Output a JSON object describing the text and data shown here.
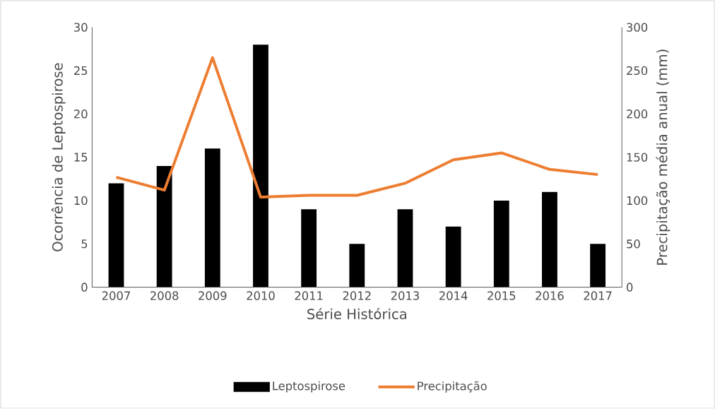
{
  "chart_data": {
    "type": "bar",
    "xlabel": "Série Histórica",
    "ylabel": "Ocorrência de Leptospirose",
    "y2label": "Precipitação média anual (mm)",
    "categories": [
      "2007",
      "2008",
      "2009",
      "2010",
      "2011",
      "2012",
      "2013",
      "2014",
      "2015",
      "2016",
      "2017"
    ],
    "series": [
      {
        "name": "Leptospirose",
        "color": "#000000",
        "values": [
          12,
          14,
          16,
          28,
          9,
          5,
          9,
          7,
          10,
          11,
          5
        ]
      },
      {
        "name": "Precipitação",
        "type": "line",
        "axis": "y2",
        "color": "#ed7d31",
        "values": [
          127,
          112,
          265,
          104,
          106,
          106,
          120,
          147,
          155,
          136,
          130
        ]
      }
    ],
    "ylim": [
      0,
      30
    ],
    "yticks": [
      0,
      5,
      10,
      15,
      20,
      25,
      30
    ],
    "y2lim": [
      0,
      300
    ],
    "y2ticks": [
      0,
      50,
      100,
      150,
      200,
      250,
      300
    ],
    "grid": false,
    "legend": "bottom",
    "marker": "none"
  }
}
